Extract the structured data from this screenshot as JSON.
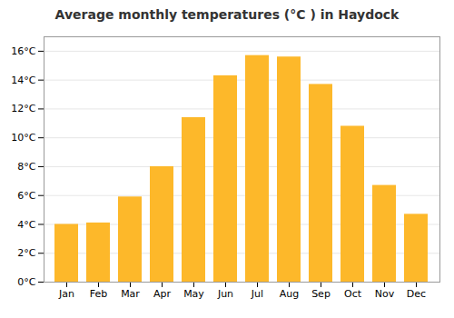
{
  "chart_data": {
    "type": "bar",
    "title": "Average monthly temperatures (°C ) in Haydock",
    "categories": [
      "Jan",
      "Feb",
      "Mar",
      "Apr",
      "May",
      "Jun",
      "Jul",
      "Aug",
      "Sep",
      "Oct",
      "Nov",
      "Dec"
    ],
    "values": [
      4.0,
      4.1,
      5.9,
      8.0,
      11.4,
      14.3,
      15.7,
      15.6,
      13.7,
      10.8,
      6.7,
      4.7
    ],
    "color": "#FDB82A",
    "ylim": [
      0,
      17
    ],
    "yticks": [
      {
        "value": 0,
        "label": "0°C"
      },
      {
        "value": 2,
        "label": "2°C"
      },
      {
        "value": 4,
        "label": "4°C"
      },
      {
        "value": 6,
        "label": "6°C"
      },
      {
        "value": 8,
        "label": "8°C"
      },
      {
        "value": 10,
        "label": "10°C"
      },
      {
        "value": 12,
        "label": "12°C"
      },
      {
        "value": 14,
        "label": "14°C"
      },
      {
        "value": 16,
        "label": "16°C"
      }
    ],
    "grid": true
  }
}
